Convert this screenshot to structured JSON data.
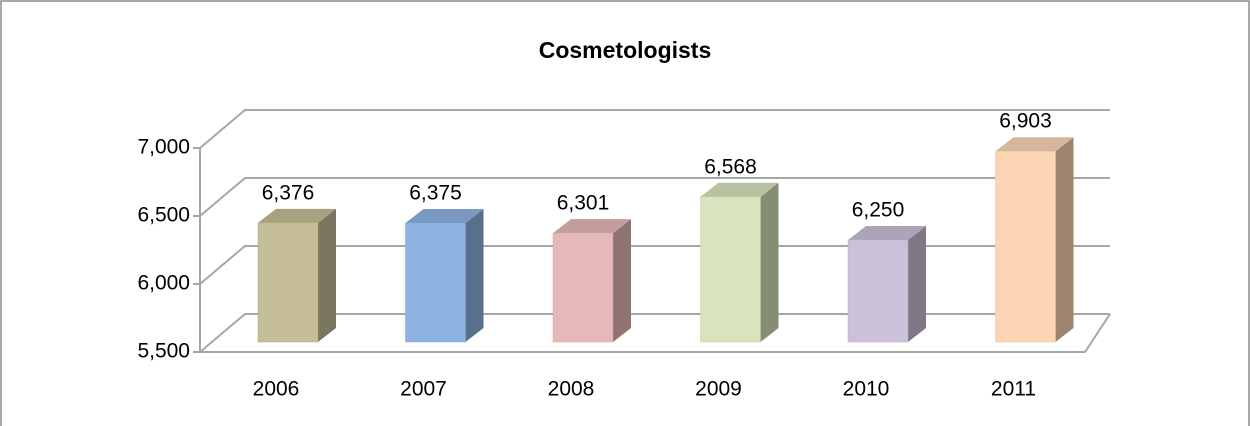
{
  "chart_data": {
    "type": "bar3d",
    "title": "Cosmetologists",
    "categories": [
      "2006",
      "2007",
      "2008",
      "2009",
      "2010",
      "2011"
    ],
    "values": [
      6376,
      6375,
      6301,
      6568,
      6250,
      6903
    ],
    "value_labels": [
      "6,376",
      "6,375",
      "6,301",
      "6,568",
      "6,250",
      "6,903"
    ],
    "colors": [
      "#c4bd97",
      "#8eb4e3",
      "#e6b9b8",
      "#d7e4bd",
      "#ccc1da",
      "#fcd5b5"
    ],
    "ylim": [
      5500,
      7000
    ],
    "yticks": [
      {
        "value": 5500,
        "label": "5,500"
      },
      {
        "value": 6000,
        "label": "6,000"
      },
      {
        "value": 6500,
        "label": "6,500"
      },
      {
        "value": 7000,
        "label": "7,000"
      }
    ],
    "grid": true
  }
}
